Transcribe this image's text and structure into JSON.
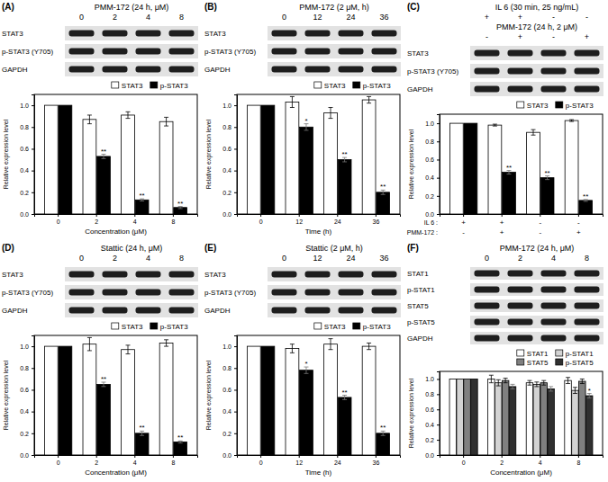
{
  "chart_data": [
    {
      "type": "bar",
      "categories": [
        "0",
        "2",
        "4",
        "8"
      ],
      "xlabel": "Concentration (μM)",
      "ylabel": "Relative expression level",
      "ylim": [
        0,
        1.1
      ],
      "yticks": [
        {
          "value": 0,
          "label": "0.0"
        },
        0.2,
        0.4,
        0.6,
        0.8,
        {
          "value": 1,
          "label": "1.0"
        }
      ],
      "legend": "top-right",
      "series": [
        {
          "name": "STAT3",
          "color": "#ffffff",
          "values": [
            1,
            0.87,
            0.91,
            0.85
          ],
          "errors": [
            0,
            0.04,
            0.03,
            0.04
          ],
          "annotations": [
            null,
            null,
            null,
            null
          ]
        },
        {
          "name": "p-STAT3",
          "color": "#000000",
          "values": [
            1,
            0.53,
            0.13,
            0.06
          ],
          "errors": [
            0,
            0.02,
            0.01,
            0.01
          ],
          "annotations": [
            null,
            "**",
            "**",
            "**"
          ]
        }
      ]
    },
    {
      "type": "bar",
      "categories": [
        "0",
        "12",
        "24",
        "36"
      ],
      "xlabel": "Time (h)",
      "ylabel": "Relative expression level",
      "ylim": [
        0,
        1.1
      ],
      "yticks": [
        {
          "value": 0,
          "label": "0.0"
        },
        0.2,
        0.4,
        0.6,
        0.8,
        {
          "value": 1,
          "label": "1.0"
        }
      ],
      "legend": "top-right",
      "series": [
        {
          "name": "STAT3",
          "color": "#ffffff",
          "values": [
            1,
            1.03,
            0.93,
            1.05
          ],
          "errors": [
            0,
            0.05,
            0.05,
            0.03
          ],
          "annotations": [
            null,
            null,
            null,
            null
          ]
        },
        {
          "name": "p-STAT3",
          "color": "#000000",
          "values": [
            1,
            0.8,
            0.5,
            0.2
          ],
          "errors": [
            0,
            0.03,
            0.02,
            0.02
          ],
          "annotations": [
            null,
            "*",
            "**",
            "**"
          ]
        }
      ]
    },
    {
      "type": "bar",
      "categories": [
        null,
        null,
        null,
        null
      ],
      "ylabel": "Relative expression level",
      "x_label_rows": [
        {
          "label": "IL 6 :",
          "values": [
            "+",
            "+",
            "-",
            "-"
          ]
        },
        {
          "label": "PMM-172 :",
          "values": [
            "-",
            "+",
            "-",
            "+"
          ]
        }
      ],
      "ylim": [
        0,
        1.1
      ],
      "yticks": [
        {
          "value": 0,
          "label": "0.0"
        },
        0.2,
        0.4,
        0.6,
        0.8,
        {
          "value": 1,
          "label": "1.0"
        }
      ],
      "legend": "top-right",
      "series": [
        {
          "name": "STAT3",
          "color": "#ffffff",
          "values": [
            1,
            0.98,
            0.9,
            1.03
          ],
          "errors": [
            0,
            0.01,
            0.03,
            0.01
          ],
          "annotations": [
            null,
            null,
            null,
            null
          ]
        },
        {
          "name": "p-STAT3",
          "color": "#000000",
          "values": [
            1,
            0.46,
            0.4,
            0.15
          ],
          "errors": [
            0,
            0.02,
            0.02,
            0.01
          ],
          "annotations": [
            null,
            "**",
            "**",
            "**"
          ]
        }
      ]
    },
    {
      "type": "bar",
      "categories": [
        "0",
        "2",
        "4",
        "8"
      ],
      "xlabel": "Concentration (μM)",
      "ylabel": "Relative expression level",
      "ylim": [
        0,
        1.1
      ],
      "yticks": [
        {
          "value": 0,
          "label": "0.0"
        },
        0.2,
        0.4,
        0.6,
        0.8,
        {
          "value": 1,
          "label": "1.0"
        }
      ],
      "legend": "top-right",
      "series": [
        {
          "name": "STAT3",
          "color": "#ffffff",
          "values": [
            1,
            1.02,
            0.97,
            1.03
          ],
          "errors": [
            0,
            0.06,
            0.04,
            0.03
          ],
          "annotations": [
            null,
            null,
            null,
            null
          ]
        },
        {
          "name": "p-STAT3",
          "color": "#000000",
          "values": [
            1,
            0.65,
            0.2,
            0.12
          ],
          "errors": [
            0,
            0.02,
            0.02,
            0.01
          ],
          "annotations": [
            null,
            "**",
            "**",
            "**"
          ]
        }
      ]
    },
    {
      "type": "bar",
      "categories": [
        "0",
        "12",
        "24",
        "36"
      ],
      "xlabel": "Time (h)",
      "ylabel": "Relative expression level",
      "ylim": [
        0,
        1.1
      ],
      "yticks": [
        {
          "value": 0,
          "label": "0.0"
        },
        0.2,
        0.4,
        0.6,
        0.8,
        {
          "value": 1,
          "label": "1.0"
        }
      ],
      "legend": "top-right",
      "series": [
        {
          "name": "STAT3",
          "color": "#ffffff",
          "values": [
            1,
            0.98,
            1.02,
            1.0
          ],
          "errors": [
            0,
            0.04,
            0.05,
            0.03
          ],
          "annotations": [
            null,
            null,
            null,
            null
          ]
        },
        {
          "name": "p-STAT3",
          "color": "#000000",
          "values": [
            1,
            0.78,
            0.53,
            0.2
          ],
          "errors": [
            0,
            0.03,
            0.02,
            0.02
          ],
          "annotations": [
            null,
            "*",
            "**",
            "**"
          ]
        }
      ]
    },
    {
      "type": "bar",
      "categories": [
        "0",
        "2",
        "4",
        "8"
      ],
      "xlabel": "Concentration (μM)",
      "ylabel": "Relative expression level",
      "ylim": [
        0,
        1.1
      ],
      "yticks": [
        {
          "value": 0,
          "label": "0.0"
        },
        0.2,
        0.4,
        0.6,
        0.8,
        {
          "value": 1,
          "label": "1.0"
        }
      ],
      "legend": "top-right",
      "series": [
        {
          "name": "STAT1",
          "color": "#ffffff",
          "values": [
            1,
            1.0,
            0.95,
            0.98
          ],
          "errors": [
            0,
            0.05,
            0.03,
            0.04
          ],
          "annotations": [
            null,
            null,
            null,
            null
          ]
        },
        {
          "name": "p-STAT1",
          "color": "#d3d3d3",
          "values": [
            1,
            0.95,
            0.93,
            0.85
          ],
          "errors": [
            0,
            0.04,
            0.03,
            0.04
          ],
          "annotations": [
            null,
            null,
            null,
            null
          ]
        },
        {
          "name": "STAT5",
          "color": "#808080",
          "values": [
            1,
            0.98,
            0.95,
            0.97
          ],
          "errors": [
            0,
            0.03,
            0.03,
            0.03
          ],
          "annotations": [
            null,
            null,
            null,
            null
          ]
        },
        {
          "name": "p-STAT5",
          "color": "#303030",
          "values": [
            1,
            0.9,
            0.87,
            0.78
          ],
          "errors": [
            0,
            0.03,
            0.03,
            0.03
          ],
          "annotations": [
            null,
            null,
            null,
            "*"
          ]
        }
      ]
    }
  ],
  "blots": [
    {
      "label": "(A)",
      "header": [
        {
          "text": "PMM-172 (24 h, μM)",
          "lanes": [
            "0",
            "2",
            "4",
            "8"
          ]
        }
      ],
      "rows": [
        "STAT3",
        "p-STAT3 (Y705)",
        "GAPDH"
      ]
    },
    {
      "label": "(B)",
      "header": [
        {
          "text": "PMM-172 (2 μM, h)",
          "lanes": [
            "0",
            "12",
            "24",
            "36"
          ]
        }
      ],
      "rows": [
        "STAT3",
        "p-STAT3 (Y705)",
        "GAPDH"
      ]
    },
    {
      "label": "(C)",
      "header": [
        {
          "text": "IL 6 (30 min, 25 ng/mL)",
          "lanes": [
            "+",
            "+",
            "-",
            "-"
          ]
        },
        {
          "text": "PMM-172 (24 h, 2 μM)",
          "lanes": [
            "-",
            "+",
            "-",
            "+"
          ]
        }
      ],
      "rows": [
        "STAT3",
        "p-STAT3 (Y705)",
        "GAPDH"
      ]
    },
    {
      "label": "(D)",
      "header": [
        {
          "text": "Stattic (24 h, μM)",
          "lanes": [
            "0",
            "2",
            "4",
            "8"
          ]
        }
      ],
      "rows": [
        "STAT3",
        "p-STAT3 (Y705)",
        "GAPDH"
      ]
    },
    {
      "label": "(E)",
      "header": [
        {
          "text": "Stattic (2 μM, h)",
          "lanes": [
            "0",
            "12",
            "24",
            "36"
          ]
        }
      ],
      "rows": [
        "STAT3",
        "p-STAT3 (Y705)",
        "GAPDH"
      ]
    },
    {
      "label": "(F)",
      "header": [
        {
          "text": "PMM-172 (24 h, μM)",
          "lanes": [
            "0",
            "2",
            "4",
            "8"
          ]
        }
      ],
      "rows": [
        "STAT1",
        "p-STAT1",
        "STAT5",
        "p-STAT5",
        "GAPDH"
      ]
    }
  ]
}
